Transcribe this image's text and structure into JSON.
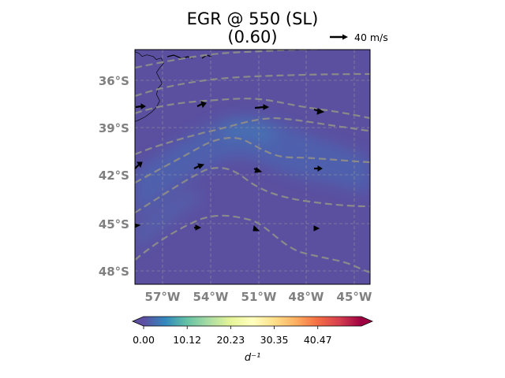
{
  "title_line1": "EGR @ 550 (SL)",
  "title_line2": "(0.60)",
  "quiver_key": {
    "label": "40 m/s"
  },
  "map": {
    "lon_range": [
      -59.0,
      -44.5
    ],
    "lat_range": [
      -49.0,
      -34.0
    ],
    "lon_ticks": [
      -57,
      -54,
      -51,
      -48,
      -45
    ],
    "lon_tick_labels": [
      "57°W",
      "54°W",
      "51°W",
      "48°W",
      "45°W"
    ],
    "lat_ticks": [
      -36,
      -39,
      -42,
      -45,
      -48
    ],
    "lat_tick_labels": [
      "36°S",
      "39°S",
      "42°S",
      "45°S",
      "48°S"
    ],
    "grid": true,
    "field_colors": {
      "base": "#5b4fa0",
      "high": "#4670b8"
    }
  },
  "colorbar": {
    "ticks": [
      "0.00",
      "10.12",
      "20.23",
      "30.35",
      "40.47"
    ],
    "min": 0,
    "max": 50.6,
    "label": "d⁻¹",
    "colormap": "Spectral_r",
    "stops": [
      "#5e4fa2",
      "#3288bd",
      "#66c2a5",
      "#abdda4",
      "#e6f598",
      "#ffffbf",
      "#fee08b",
      "#fdae61",
      "#f46d43",
      "#d53e4f",
      "#9e0142"
    ]
  }
}
